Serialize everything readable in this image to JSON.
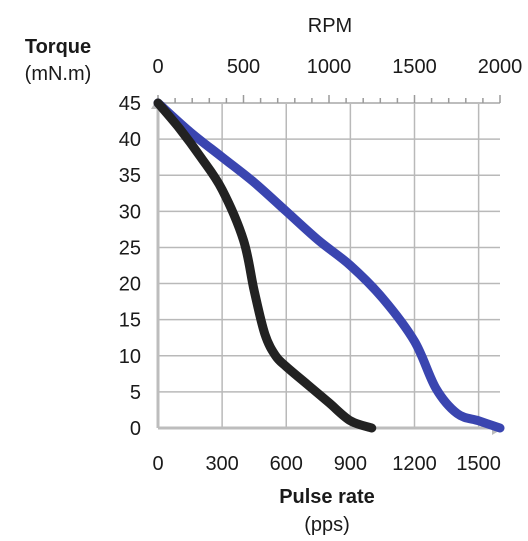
{
  "chart_data": {
    "type": "line",
    "title": "",
    "ylabel": "Torque",
    "ylabel_unit": "(mN.m)",
    "xlabel": "Pulse rate",
    "xlabel_unit": "(pps)",
    "x2label": "RPM",
    "xlim": [
      0,
      1600
    ],
    "ylim": [
      0,
      45
    ],
    "x2lim": [
      0,
      2000
    ],
    "x_ticks": [
      "0",
      "300",
      "600",
      "900",
      "1200",
      "1500"
    ],
    "x_tick_values": [
      0,
      300,
      600,
      900,
      1200,
      1500
    ],
    "x2_ticks": [
      "0",
      "500",
      "1000",
      "1500",
      "2000"
    ],
    "x2_tick_values": [
      0,
      500,
      1000,
      1500,
      2000
    ],
    "y_ticks": [
      "0",
      "5",
      "10",
      "15",
      "20",
      "25",
      "30",
      "35",
      "40",
      "45"
    ],
    "y_tick_values": [
      0,
      5,
      10,
      15,
      20,
      25,
      30,
      35,
      40,
      45
    ],
    "grid": true,
    "legend": "none",
    "series": [
      {
        "color": "#3a45b0",
        "x": [
          0,
          150,
          300,
          450,
          600,
          750,
          900,
          1050,
          1200,
          1300,
          1400,
          1500,
          1600
        ],
        "y": [
          45,
          41,
          37.5,
          34,
          30,
          26,
          22.5,
          18,
          12,
          5.5,
          2,
          1,
          0
        ]
      },
      {
        "color": "#222222",
        "x": [
          0,
          100,
          200,
          300,
          400,
          450,
          500,
          550,
          600,
          700,
          800,
          900,
          1000
        ],
        "y": [
          45,
          41.5,
          37.5,
          33,
          26,
          19,
          13,
          10,
          8.5,
          6,
          3.5,
          1,
          0
        ]
      }
    ]
  }
}
